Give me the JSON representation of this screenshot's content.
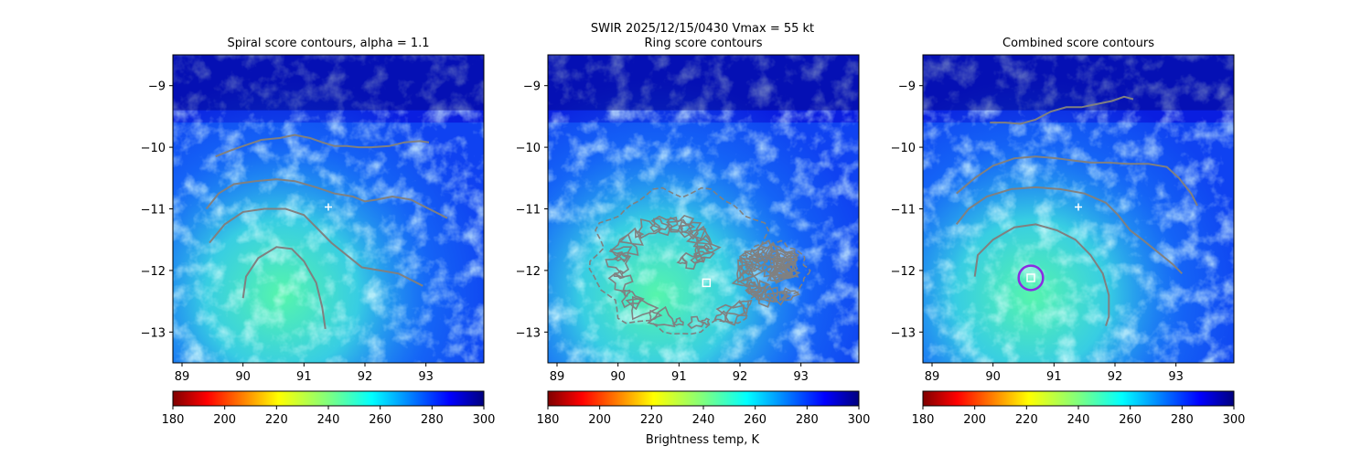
{
  "figure": {
    "suptitle_line1": "SWIR  2025/12/15/0430    Vmax = 55 kt",
    "colorbar_label": "Brightness temp, K"
  },
  "colors": {
    "contour": "#808080",
    "marker": "#ffffff",
    "center_circle": "#8a2be2"
  },
  "chart_data": [
    {
      "type": "heatmap",
      "title": "Spiral score contours, alpha =  1.1",
      "colormap": "jet_r",
      "xlim": [
        88.85,
        93.95
      ],
      "ylim": [
        -13.5,
        -8.5
      ],
      "xticks": [
        "89",
        "90",
        "91",
        "92",
        "93"
      ],
      "yticks": [
        "−9",
        "−10",
        "−11",
        "−12",
        "−13"
      ],
      "colorbar": {
        "range": [
          180,
          300
        ],
        "ticks": [
          "180",
          "200",
          "220",
          "240",
          "260",
          "280",
          "300"
        ]
      },
      "contours": [
        {
          "name": "spiral-arm-north",
          "points": [
            [
              89.55,
              -10.15
            ],
            [
              89.8,
              -10.05
            ],
            [
              90.0,
              -9.98
            ],
            [
              90.3,
              -9.88
            ],
            [
              90.6,
              -9.85
            ],
            [
              90.85,
              -9.8
            ],
            [
              91.1,
              -9.85
            ],
            [
              91.3,
              -9.92
            ],
            [
              91.5,
              -9.98
            ],
            [
              91.7,
              -9.98
            ],
            [
              91.9,
              -10.0
            ],
            [
              92.1,
              -10.0
            ],
            [
              92.4,
              -9.98
            ],
            [
              92.65,
              -9.92
            ],
            [
              92.9,
              -9.9
            ],
            [
              93.05,
              -9.92
            ]
          ]
        },
        {
          "name": "spiral-arm-middle",
          "points": [
            [
              89.4,
              -11.0
            ],
            [
              89.6,
              -10.75
            ],
            [
              89.85,
              -10.6
            ],
            [
              90.2,
              -10.55
            ],
            [
              90.55,
              -10.52
            ],
            [
              90.85,
              -10.55
            ],
            [
              91.2,
              -10.65
            ],
            [
              91.5,
              -10.75
            ],
            [
              91.8,
              -10.8
            ],
            [
              92.0,
              -10.88
            ],
            [
              92.2,
              -10.85
            ],
            [
              92.45,
              -10.8
            ],
            [
              92.75,
              -10.85
            ],
            [
              92.95,
              -10.95
            ],
            [
              93.15,
              -11.05
            ],
            [
              93.35,
              -11.15
            ]
          ]
        },
        {
          "name": "spiral-arm-inner",
          "points": [
            [
              89.45,
              -11.55
            ],
            [
              89.7,
              -11.25
            ],
            [
              90.0,
              -11.05
            ],
            [
              90.35,
              -11.0
            ],
            [
              90.7,
              -11.0
            ],
            [
              91.0,
              -11.1
            ],
            [
              91.25,
              -11.35
            ],
            [
              91.45,
              -11.55
            ],
            [
              91.7,
              -11.75
            ],
            [
              91.95,
              -11.95
            ],
            [
              92.25,
              -12.0
            ],
            [
              92.55,
              -12.05
            ],
            [
              92.75,
              -12.15
            ],
            [
              92.95,
              -12.25
            ]
          ]
        },
        {
          "name": "spiral-arm-south",
          "points": [
            [
              90.0,
              -12.45
            ],
            [
              90.05,
              -12.1
            ],
            [
              90.25,
              -11.8
            ],
            [
              90.55,
              -11.62
            ],
            [
              90.8,
              -11.65
            ],
            [
              91.0,
              -11.85
            ],
            [
              91.2,
              -12.2
            ],
            [
              91.3,
              -12.6
            ],
            [
              91.35,
              -12.95
            ]
          ]
        }
      ],
      "ring_contours": [],
      "markers": [
        {
          "kind": "plus",
          "x": 91.4,
          "y": -10.97
        }
      ],
      "show_colorbar_label": false
    },
    {
      "type": "heatmap",
      "title": "Ring score contours",
      "colormap": "jet_r",
      "xlim": [
        88.85,
        93.95
      ],
      "ylim": [
        -13.5,
        -8.5
      ],
      "xticks": [
        "89",
        "90",
        "91",
        "92",
        "93"
      ],
      "yticks": [
        "−9",
        "−10",
        "−11",
        "−12",
        "−13"
      ],
      "colorbar": {
        "range": [
          180,
          300
        ],
        "ticks": [
          "180",
          "200",
          "220",
          "240",
          "260",
          "280",
          "300"
        ]
      },
      "contours": [],
      "ring_contours": [
        {
          "cx": 91.05,
          "cy": -11.85,
          "rx": 1.45,
          "ry": 1.15
        },
        {
          "cx": 92.55,
          "cy": -12.0,
          "rx": 0.55,
          "ry": 0.45
        }
      ],
      "markers": [
        {
          "kind": "square",
          "x": 91.45,
          "y": -12.2
        }
      ],
      "show_colorbar_label": true
    },
    {
      "type": "heatmap",
      "title": "Combined score contours",
      "colormap": "jet_r",
      "xlim": [
        88.85,
        93.95
      ],
      "ylim": [
        -13.5,
        -8.5
      ],
      "xticks": [
        "89",
        "90",
        "91",
        "92",
        "93"
      ],
      "yticks": [
        "−9",
        "−10",
        "−11",
        "−12",
        "−13"
      ],
      "colorbar": {
        "range": [
          180,
          300
        ],
        "ticks": [
          "180",
          "200",
          "220",
          "240",
          "260",
          "280",
          "300"
        ]
      },
      "contours": [
        {
          "name": "combined-arm-north",
          "points": [
            [
              89.95,
              -9.6
            ],
            [
              90.2,
              -9.6
            ],
            [
              90.45,
              -9.62
            ],
            [
              90.7,
              -9.55
            ],
            [
              90.95,
              -9.42
            ],
            [
              91.2,
              -9.35
            ],
            [
              91.45,
              -9.35
            ],
            [
              91.7,
              -9.3
            ],
            [
              91.95,
              -9.25
            ],
            [
              92.15,
              -9.18
            ],
            [
              92.3,
              -9.22
            ]
          ]
        },
        {
          "name": "combined-arm-middle",
          "points": [
            [
              89.4,
              -10.75
            ],
            [
              89.7,
              -10.5
            ],
            [
              90.0,
              -10.3
            ],
            [
              90.35,
              -10.18
            ],
            [
              90.7,
              -10.15
            ],
            [
              91.05,
              -10.18
            ],
            [
              91.35,
              -10.22
            ],
            [
              91.6,
              -10.25
            ],
            [
              91.9,
              -10.25
            ],
            [
              92.2,
              -10.27
            ],
            [
              92.55,
              -10.27
            ],
            [
              92.85,
              -10.32
            ],
            [
              93.05,
              -10.5
            ],
            [
              93.25,
              -10.75
            ],
            [
              93.35,
              -10.95
            ]
          ]
        },
        {
          "name": "combined-arm-inner",
          "points": [
            [
              89.4,
              -11.25
            ],
            [
              89.6,
              -11.0
            ],
            [
              89.9,
              -10.8
            ],
            [
              90.3,
              -10.68
            ],
            [
              90.7,
              -10.65
            ],
            [
              91.1,
              -10.68
            ],
            [
              91.5,
              -10.75
            ],
            [
              91.85,
              -10.9
            ],
            [
              92.05,
              -11.1
            ],
            [
              92.25,
              -11.35
            ],
            [
              92.45,
              -11.5
            ],
            [
              92.7,
              -11.7
            ],
            [
              92.95,
              -11.9
            ],
            [
              93.1,
              -12.05
            ]
          ]
        },
        {
          "name": "combined-arm-south",
          "points": [
            [
              89.7,
              -12.1
            ],
            [
              89.75,
              -11.75
            ],
            [
              90.0,
              -11.5
            ],
            [
              90.35,
              -11.3
            ],
            [
              90.7,
              -11.25
            ],
            [
              91.05,
              -11.35
            ],
            [
              91.35,
              -11.5
            ],
            [
              91.6,
              -11.75
            ],
            [
              91.8,
              -12.05
            ],
            [
              91.9,
              -12.4
            ],
            [
              91.9,
              -12.75
            ],
            [
              91.85,
              -12.9
            ]
          ]
        }
      ],
      "ring_contours": [],
      "markers": [
        {
          "kind": "plus",
          "x": 91.4,
          "y": -10.97
        },
        {
          "kind": "square",
          "x": 90.62,
          "y": -12.12
        },
        {
          "kind": "circle",
          "x": 90.62,
          "y": -12.12,
          "r": 0.2
        }
      ],
      "show_colorbar_label": false
    }
  ]
}
